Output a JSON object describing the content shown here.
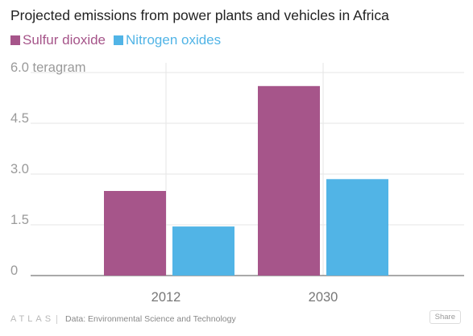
{
  "header": {
    "title": "Projected emissions from power plants and vehicles in Africa"
  },
  "chart_data": {
    "type": "bar",
    "categories": [
      "2012",
      "2030"
    ],
    "series": [
      {
        "name": "Sulfur dioxide",
        "values": [
          2.5,
          5.6
        ],
        "color": "#a6558a"
      },
      {
        "name": "Nitrogen oxides",
        "values": [
          1.45,
          2.85
        ],
        "color": "#51b4e6"
      }
    ],
    "ylim": [
      0,
      6.0
    ],
    "yticks": [
      {
        "value": 0,
        "label": "0"
      },
      {
        "value": 1.5,
        "label": "1.5"
      },
      {
        "value": 3.0,
        "label": "3.0"
      },
      {
        "value": 4.5,
        "label": "4.5"
      },
      {
        "value": 6.0,
        "label": "6.0 teragram"
      }
    ],
    "grid": true,
    "legend_position": "top-left"
  },
  "footer": {
    "logo": "ATLAS",
    "source": "Data:  Environmental Science and Technology",
    "share_label": "Share"
  }
}
